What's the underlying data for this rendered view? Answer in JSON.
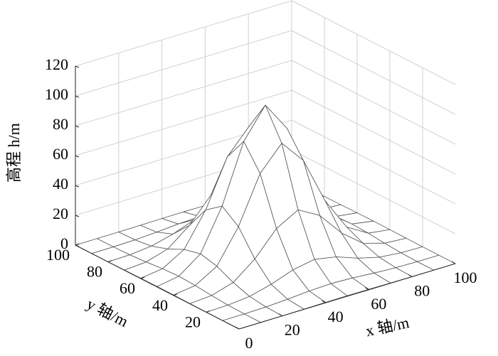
{
  "chart_data": {
    "type": "surface",
    "xlabel": "x 轴/m",
    "ylabel": "y 轴/m",
    "zlabel": "高程 h/m",
    "x": [
      0,
      10,
      20,
      30,
      40,
      50,
      60,
      70,
      80,
      90,
      100
    ],
    "y": [
      0,
      10,
      20,
      30,
      40,
      50,
      60,
      70,
      80,
      90,
      100
    ],
    "z": [
      [
        0,
        0.01,
        0.05,
        0.16,
        0.31,
        0.39,
        0.31,
        0.16,
        0.05,
        0.01,
        0
      ],
      [
        0.01,
        0.08,
        0.39,
        1.18,
        2.29,
        2.86,
        2.29,
        1.18,
        0.39,
        0.08,
        0.01
      ],
      [
        0.05,
        0.39,
        1.82,
        5.55,
        10.81,
        13.5,
        10.81,
        5.55,
        1.82,
        0.39,
        0.05
      ],
      [
        0.16,
        1.18,
        5.55,
        16.89,
        32.92,
        41.1,
        32.92,
        16.89,
        5.55,
        1.18,
        0.16
      ],
      [
        0.31,
        2.29,
        10.81,
        32.92,
        64.16,
        80.1,
        64.16,
        32.92,
        10.81,
        2.29,
        0.31
      ],
      [
        0.39,
        2.86,
        13.5,
        41.1,
        80.1,
        100,
        80.1,
        41.1,
        13.5,
        2.86,
        0.39
      ],
      [
        0.31,
        2.29,
        10.81,
        32.92,
        64.16,
        80.1,
        64.16,
        32.92,
        10.81,
        2.29,
        0.31
      ],
      [
        0.16,
        1.18,
        5.55,
        16.89,
        32.92,
        41.1,
        32.92,
        16.89,
        5.55,
        1.18,
        0.16
      ],
      [
        0.05,
        0.39,
        1.82,
        5.55,
        10.81,
        13.5,
        10.81,
        5.55,
        1.82,
        0.39,
        0.05
      ],
      [
        0.01,
        0.08,
        0.39,
        1.18,
        2.29,
        2.86,
        2.29,
        1.18,
        0.39,
        0.08,
        0.01
      ],
      [
        0,
        0.01,
        0.05,
        0.16,
        0.31,
        0.39,
        0.31,
        0.16,
        0.05,
        0.01,
        0
      ]
    ],
    "xlim": [
      0,
      100
    ],
    "ylim": [
      0,
      100
    ],
    "zlim": [
      0,
      120
    ],
    "xticks": [
      0,
      20,
      40,
      60,
      80,
      100
    ],
    "yticks": [
      20,
      40,
      60,
      80,
      100
    ],
    "zticks": [
      0,
      20,
      40,
      60,
      80,
      100,
      120
    ],
    "grid": true,
    "color": "#555555"
  }
}
